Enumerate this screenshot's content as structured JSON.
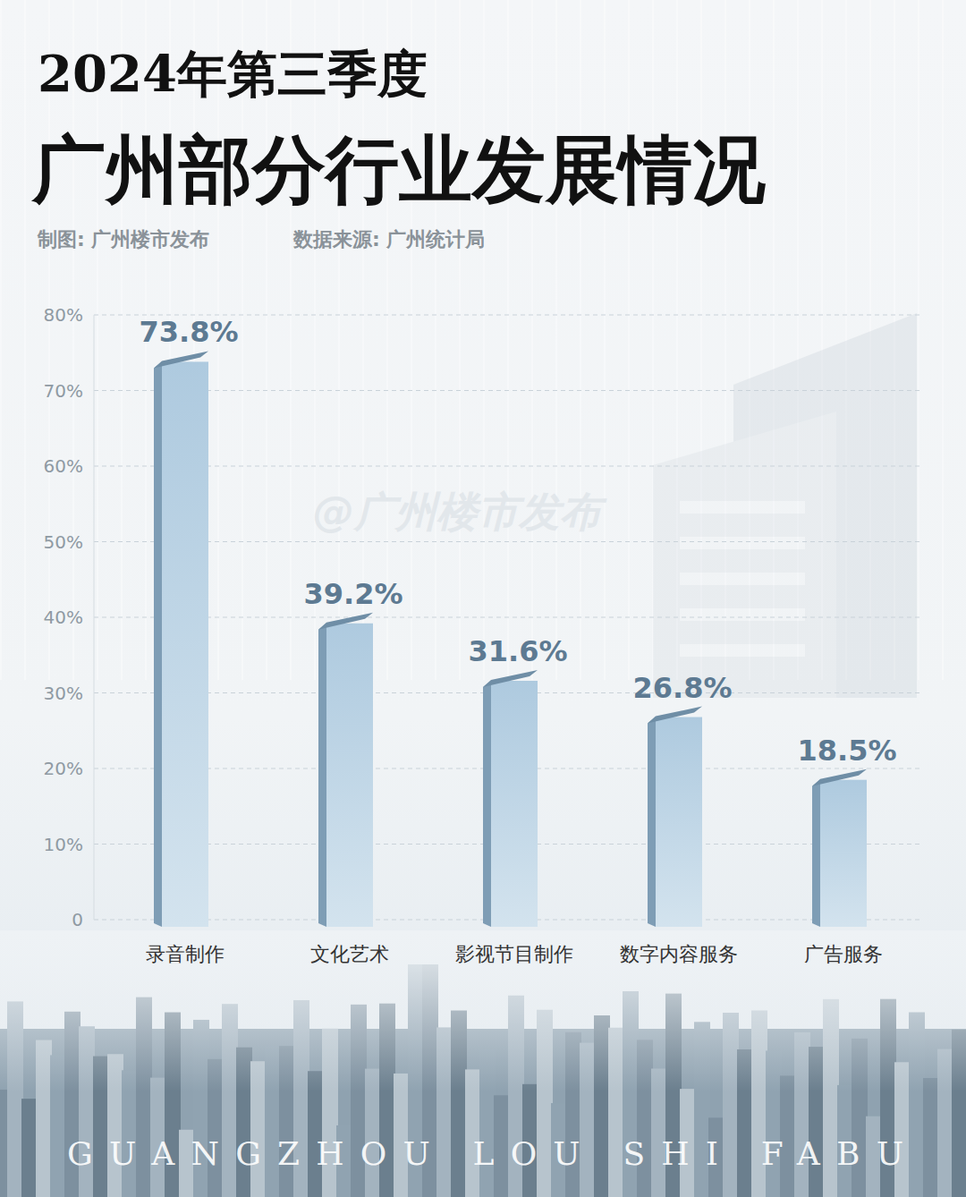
{
  "chart_data": {
    "type": "bar",
    "title": "2024年第三季度",
    "subtitle": "广州部分行业发展情况",
    "annotations": [
      "制图: 广州楼市发布",
      "数据来源: 广州统计局",
      "@广州楼市发布",
      "GUANGZHOU LOU SHI FABU"
    ],
    "categories": [
      "录音制作",
      "文化艺术",
      "影视节目制作",
      "数字内容服务",
      "广告服务"
    ],
    "values": [
      73.8,
      39.2,
      31.6,
      26.8,
      18.5
    ],
    "value_labels": [
      "73.8%",
      "39.2%",
      "31.6%",
      "26.8%",
      "18.5%"
    ],
    "color": "#aecadf",
    "ylim": [
      0,
      80
    ],
    "yticks": [
      0,
      {
        "value": 10,
        "label": "10%"
      },
      {
        "value": 20,
        "label": "20%"
      },
      {
        "value": 30,
        "label": "30%"
      },
      {
        "value": 40,
        "label": "40%"
      },
      {
        "value": 50,
        "label": "50%"
      },
      {
        "value": 60,
        "label": "60%"
      },
      {
        "value": 70,
        "label": "70%"
      },
      {
        "value": 80,
        "label": "80%"
      }
    ],
    "grid": true,
    "data_labels": true
  }
}
